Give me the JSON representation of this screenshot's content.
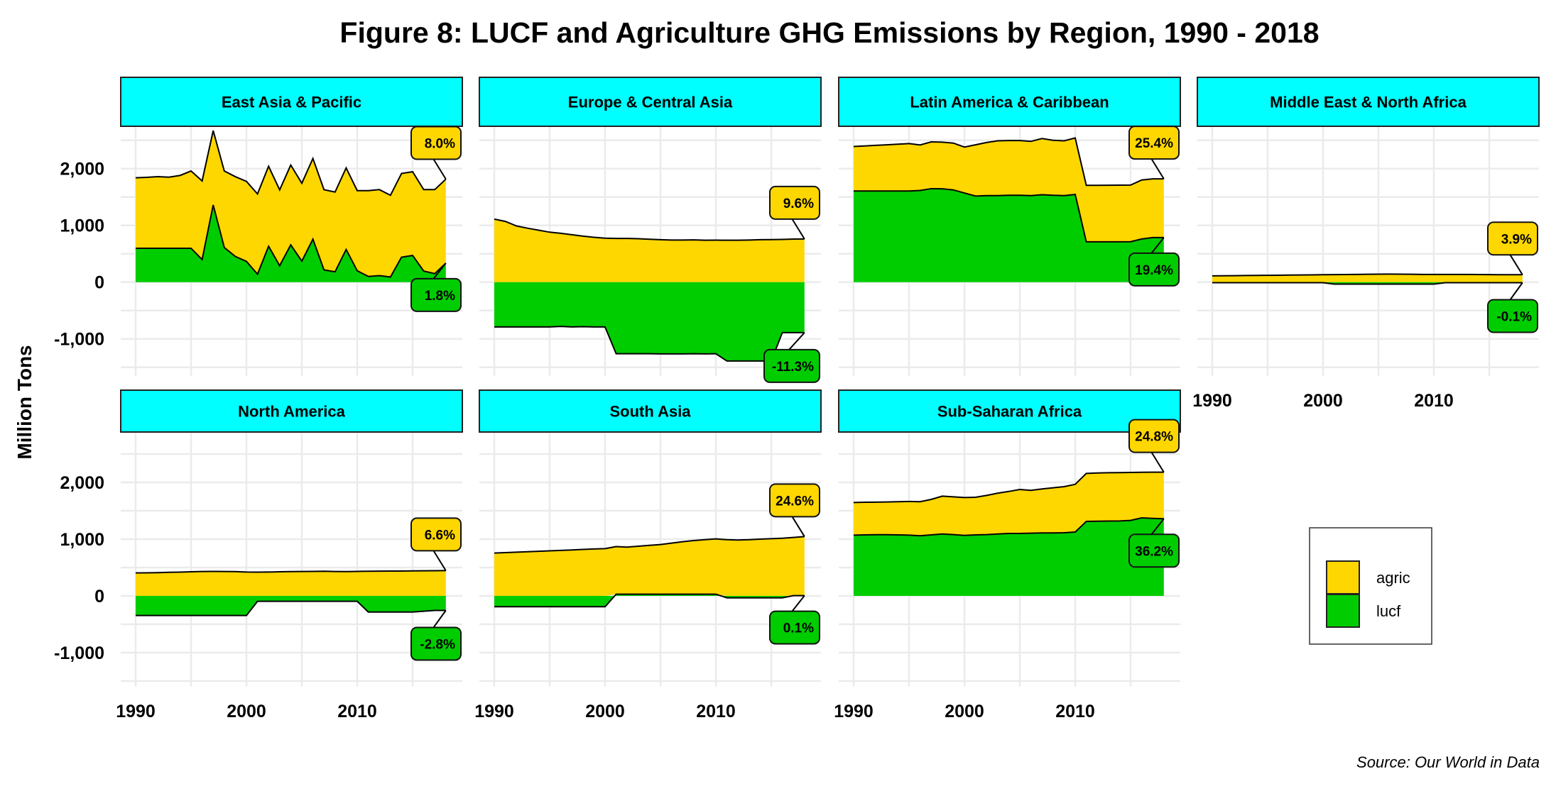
{
  "chart_data": {
    "type": "area",
    "stacked": true,
    "title": "Figure 8: LUCF and Agriculture GHG Emissions by Region, 1990 - 2018",
    "ylabel": "Million Tons",
    "xlabel": "",
    "source": "Source: Our World in Data",
    "x": [
      1990,
      1991,
      1992,
      1993,
      1994,
      1995,
      1996,
      1997,
      1998,
      1999,
      2000,
      2001,
      2002,
      2003,
      2004,
      2005,
      2006,
      2007,
      2008,
      2009,
      2010,
      2011,
      2012,
      2013,
      2014,
      2015,
      2016,
      2017,
      2018
    ],
    "xlim": [
      1988.6,
      2019.8
    ],
    "ylim": [
      -1600,
      2800
    ],
    "x_ticks": [
      1990,
      2000,
      2010
    ],
    "x_tick_labels": [
      "1990",
      "2000",
      "2010"
    ],
    "y_ticks": [
      -1000,
      0,
      1000,
      2000
    ],
    "y_tick_labels": [
      "-1,000",
      "0",
      "1,000",
      "2,000"
    ],
    "grid": true,
    "legend": {
      "position": "bottom-right",
      "entries": [
        {
          "key": "agric",
          "label": "agric",
          "color": "#FFD700"
        },
        {
          "key": "lucf",
          "label": "lucf",
          "color": "#00CD00"
        }
      ]
    },
    "colors": {
      "agric": "#FFD700",
      "lucf": "#00CD00",
      "strip": "#00FFFF"
    },
    "panels": [
      {
        "region": "East Asia & Pacific",
        "lucf": [
          597,
          597,
          597,
          597,
          597,
          597,
          397,
          1360,
          610,
          452,
          365,
          140,
          632,
          290,
          657,
          370,
          757,
          215,
          182,
          575,
          200,
          100,
          115,
          90,
          440,
          470,
          195,
          150,
          335
        ],
        "total": [
          1838,
          1846,
          1858,
          1850,
          1879,
          1958,
          1783,
          2670,
          1958,
          1858,
          1775,
          1554,
          2042,
          1625,
          2063,
          1742,
          2179,
          1629,
          1587,
          2013,
          1612,
          1612,
          1630,
          1530,
          1915,
          1945,
          1630,
          1630,
          1815
        ],
        "agric_change_label": "8.0%",
        "lucf_change_label": "1.8%"
      },
      {
        "region": "Europe & Central Asia",
        "lucf": [
          -790,
          -790,
          -790,
          -790,
          -790,
          -790,
          -780,
          -790,
          -785,
          -790,
          -790,
          -1262,
          -1262,
          -1262,
          -1262,
          -1265,
          -1265,
          -1265,
          -1262,
          -1265,
          -1262,
          -1390,
          -1390,
          -1390,
          -1390,
          -1390,
          -890,
          -890,
          -890
        ],
        "total": [
          1110,
          1070,
          990,
          950,
          915,
          880,
          860,
          835,
          810,
          790,
          775,
          770,
          770,
          765,
          755,
          748,
          742,
          742,
          745,
          738,
          740,
          738,
          738,
          742,
          748,
          750,
          752,
          758,
          760
        ],
        "agric_change_label": "9.6%",
        "lucf_change_label": "-11.3%"
      },
      {
        "region": "Latin America & Caribbean",
        "lucf": [
          1605,
          1605,
          1605,
          1605,
          1605,
          1605,
          1615,
          1647,
          1645,
          1625,
          1570,
          1517,
          1525,
          1525,
          1530,
          1530,
          1525,
          1540,
          1530,
          1525,
          1545,
          710,
          710,
          710,
          710,
          712,
          760,
          785,
          785
        ],
        "total": [
          2390,
          2400,
          2410,
          2420,
          2430,
          2442,
          2417,
          2471,
          2467,
          2450,
          2380,
          2420,
          2460,
          2490,
          2495,
          2495,
          2480,
          2530,
          2500,
          2490,
          2540,
          1705,
          1705,
          1707,
          1708,
          1710,
          1800,
          1820,
          1820
        ],
        "agric_change_label": "25.4%",
        "lucf_change_label": "19.4%"
      },
      {
        "region": "Middle East & North Africa",
        "lucf": [
          -10,
          -10,
          -10,
          -10,
          -10,
          -10,
          -10,
          -10,
          -10,
          -10,
          -10,
          -35,
          -35,
          -35,
          -35,
          -35,
          -35,
          -35,
          -35,
          -35,
          -35,
          -10,
          -10,
          -10,
          -10,
          -10,
          -10,
          -10,
          -10
        ],
        "total": [
          110,
          112,
          114,
          116,
          118,
          120,
          122,
          124,
          126,
          128,
          130,
          132,
          134,
          136,
          138,
          140,
          142,
          140,
          138,
          136,
          135,
          135,
          135,
          135,
          133,
          132,
          131,
          130,
          130
        ],
        "agric_change_label": "3.9%",
        "lucf_change_label": "-0.1%"
      },
      {
        "region": "North America",
        "lucf": [
          -346,
          -346,
          -346,
          -346,
          -346,
          -346,
          -346,
          -346,
          -346,
          -346,
          -346,
          -96,
          -96,
          -96,
          -96,
          -96,
          -96,
          -96,
          -96,
          -96,
          -96,
          -284,
          -284,
          -284,
          -284,
          -284,
          -270,
          -256,
          -256
        ],
        "total": [
          404,
          406,
          410,
          415,
          418,
          425,
          430,
          432,
          430,
          428,
          420,
          418,
          420,
          425,
          428,
          430,
          432,
          434,
          430,
          428,
          432,
          434,
          436,
          438,
          438,
          440,
          442,
          444,
          445
        ],
        "agric_change_label": "6.6%",
        "lucf_change_label": "-2.8%"
      },
      {
        "region": "South Asia",
        "lucf": [
          -191,
          -191,
          -191,
          -191,
          -191,
          -191,
          -191,
          -191,
          -191,
          -191,
          -191,
          30,
          30,
          30,
          30,
          30,
          30,
          30,
          30,
          30,
          30,
          -34,
          -34,
          -34,
          -34,
          -34,
          -34,
          5,
          5
        ],
        "total": [
          754,
          762,
          770,
          778,
          786,
          794,
          802,
          810,
          818,
          826,
          833,
          868,
          860,
          875,
          890,
          905,
          930,
          955,
          975,
          990,
          1004,
          990,
          985,
          990,
          1000,
          1008,
          1015,
          1030,
          1046
        ],
        "agric_change_label": "24.6%",
        "lucf_change_label": "0.1%"
      },
      {
        "region": "Sub-Saharan Africa",
        "lucf": [
          1071,
          1075,
          1078,
          1078,
          1075,
          1070,
          1060,
          1075,
          1090,
          1080,
          1065,
          1075,
          1080,
          1090,
          1100,
          1100,
          1105,
          1110,
          1110,
          1112,
          1125,
          1312,
          1315,
          1318,
          1320,
          1330,
          1375,
          1365,
          1359
        ],
        "total": [
          1646,
          1650,
          1652,
          1655,
          1660,
          1664,
          1660,
          1700,
          1758,
          1745,
          1733,
          1738,
          1770,
          1810,
          1840,
          1875,
          1860,
          1885,
          1905,
          1925,
          1966,
          2158,
          2165,
          2170,
          2172,
          2175,
          2178,
          2180,
          2180
        ],
        "agric_change_label": "24.8%",
        "lucf_change_label": "36.2%"
      }
    ]
  }
}
